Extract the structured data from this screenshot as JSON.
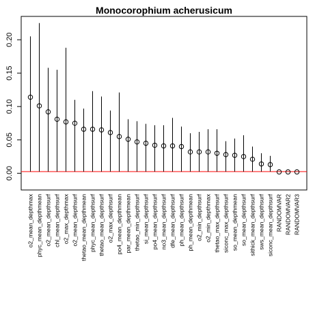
{
  "chart_data": {
    "type": "scatter",
    "title": "Monocorophium acherusicum",
    "xlabel": "",
    "ylabel": "",
    "ylim": [
      -0.025,
      0.235
    ],
    "yticks": [
      0.0,
      0.05,
      0.1,
      0.15,
      0.2
    ],
    "ytick_labels": [
      "0.00",
      "0.05",
      "0.10",
      "0.15",
      "0.20"
    ],
    "reference_line": {
      "y": 0.0025,
      "color": "#ff0000"
    },
    "grid": false,
    "point_style": "open-circle",
    "categories": [
      "o2_mean_depthmax",
      "phyc_mean_depthmean",
      "o2_mean_depthsurf",
      "chl_mean_depthsurf",
      "o2_max_depthmax",
      "o2_mean_depthsurf",
      "thetao_mean_depthmean",
      "phyc_mean_depthsurf",
      "thetao_mean_depthsurf",
      "o2_max_depthsurf",
      "po4_mean_depthmean",
      "par_mean_depthmean",
      "thetao_min_depthsurf",
      "si_mean_depthsurf",
      "po4_mean_depthsurf",
      "no3_mean_depthsurf",
      "dfe_mean_depthsurf",
      "ph_mean_depthsurf",
      "ph_mean_depthmean",
      "o2_min_depthsurf",
      "o2_min_depthmax",
      "thetao_max_depthsurf",
      "siconc_max_depthsurf",
      "so_mean_depthmean",
      "so_mean_depthsurf",
      "sithick_mean_depthsurf",
      "sws_mean_depthsurf",
      "siconc_mean_depthsurf",
      "RANDOMVAR",
      "RANDOMVAR2",
      "RANDOMVAR3"
    ],
    "series": [
      {
        "values": [
          0.114,
          0.101,
          0.092,
          0.081,
          0.077,
          0.075,
          0.066,
          0.066,
          0.065,
          0.061,
          0.055,
          0.051,
          0.047,
          0.045,
          0.042,
          0.041,
          0.041,
          0.04,
          0.032,
          0.032,
          0.032,
          0.03,
          0.028,
          0.027,
          0.025,
          0.021,
          0.014,
          0.013,
          0.002,
          0.002,
          0.002
        ],
        "upper": [
          0.205,
          0.225,
          0.158,
          0.155,
          0.188,
          0.11,
          0.097,
          0.123,
          0.115,
          0.094,
          0.121,
          0.081,
          0.078,
          0.074,
          0.072,
          0.072,
          0.083,
          0.07,
          0.06,
          0.062,
          0.066,
          0.066,
          0.048,
          0.052,
          0.057,
          0.04,
          0.03,
          0.026,
          0.002,
          0.002,
          0.002
        ],
        "color": "#000000"
      }
    ]
  }
}
